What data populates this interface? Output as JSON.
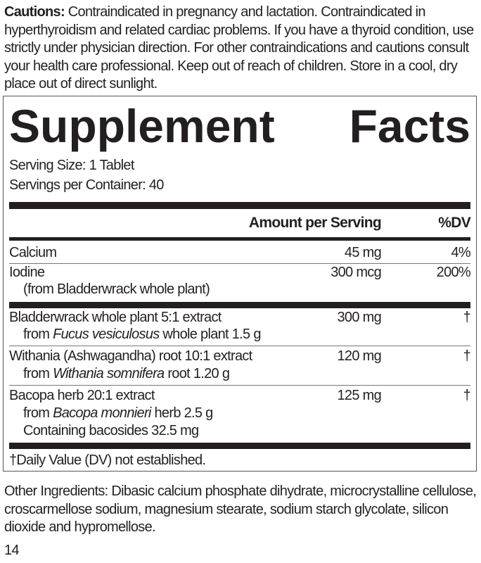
{
  "cautions": {
    "label": "Cautions:",
    "text": " Contraindicated in pregnancy and lactation. Contraindicated in hyperthyroidism and related cardiac problems. If you have a thyroid condition, use strictly under physician direction. For other contraindications and cautions consult your health care professional. Keep out of reach of children. Store in a cool, dry place out of direct sunlight."
  },
  "facts": {
    "title_word1": "Supplement",
    "title_word2": "Facts",
    "serving_size": "Serving Size: 1 Tablet",
    "servings_per_container": "Servings per Container: 40",
    "header_amount": "Amount per Serving",
    "header_dv": "%DV",
    "rows": [
      {
        "name": "Calcium",
        "amount": "45 mg",
        "dv": "4%"
      },
      {
        "name": "Iodine",
        "amount": "300 mcg",
        "dv": "200%",
        "sub": "(from Bladderwrack whole plant)"
      },
      {
        "name": "Bladderwrack whole plant 5:1 extract",
        "amount": "300 mg",
        "dv": "†",
        "sub_pre": "from ",
        "sub_italic": "Fucus vesiculosus",
        "sub_post": " whole plant 1.5 g"
      },
      {
        "name": "Withania (Ashwagandha) root 10:1 extract",
        "amount": "120 mg",
        "dv": "†",
        "sub_pre": "from ",
        "sub_italic": "Withania somnifera",
        "sub_post": " root 1.20 g"
      },
      {
        "name": "Bacopa herb 20:1 extract",
        "amount": "125 mg",
        "dv": "†",
        "sub_pre": "from ",
        "sub_italic": "Bacopa monnieri",
        "sub_post": " herb 2.5 g",
        "sub2": "Containing bacosides 32.5 mg"
      }
    ],
    "footnote": "†Daily Value (DV) not established."
  },
  "other_ingredients": "Other Ingredients: Dibasic calcium phosphate dihydrate, microcrystalline cellulose, croscarmellose sodium, magnesium stearate, sodium starch glycolate, silicon dioxide and hypromellose.",
  "page_number": "14"
}
